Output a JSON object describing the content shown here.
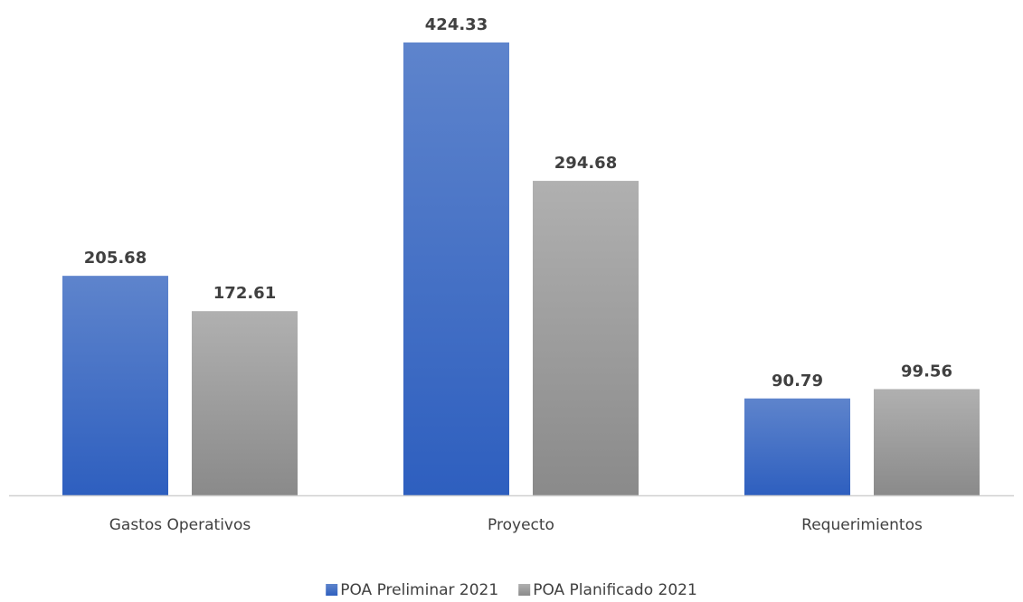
{
  "chart_data": {
    "type": "bar",
    "title": "",
    "xlabel": "",
    "ylabel": "",
    "categories": [
      "Gastos Operativos",
      "Proyecto",
      "Requerimientos"
    ],
    "series": [
      {
        "name": "POA Preliminar 2021",
        "values": [
          205.68,
          424.33,
          90.79
        ],
        "labels": [
          "205.68",
          "424.33",
          "90.79"
        ],
        "color_top": "#5e84cc",
        "color_bottom": "#2e5fbf"
      },
      {
        "name": "POA Planificado 2021",
        "values": [
          172.61,
          294.68,
          99.56
        ],
        "labels": [
          "172.61",
          "294.68",
          "99.56"
        ],
        "color_top": "#b0b0b0",
        "color_bottom": "#8a8a8a"
      }
    ],
    "ylim": [
      0,
      424.33
    ],
    "grid": false,
    "legend_position": "bottom-center",
    "axis_color": "#d0d0d0",
    "text_color": "#404040"
  }
}
